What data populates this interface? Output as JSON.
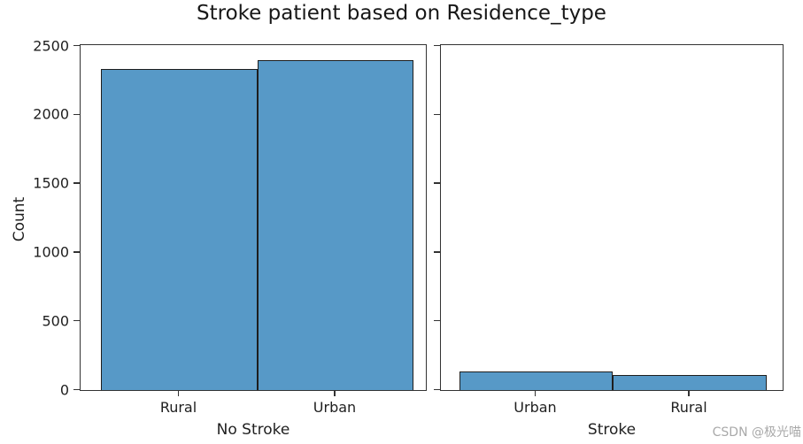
{
  "suptitle": "Stroke patient based on Residence_type",
  "watermark": "CSDN @极光喵",
  "colors": {
    "bar_fill": "#5799c7",
    "bar_edge": "#1e1e1e",
    "spine": "#333333",
    "text": "#1f1f1f",
    "watermark": "#a9a9a9"
  },
  "chart_data": [
    {
      "type": "bar",
      "subplot": "left",
      "categories": [
        "Rural",
        "Urban"
      ],
      "values": [
        2330,
        2395
      ],
      "xlabel": "No Stroke",
      "ylabel": "Count",
      "ylim": [
        0,
        2500
      ],
      "yticks": [
        0,
        500,
        1000,
        1500,
        2000,
        2500
      ],
      "grid": false,
      "legend": null
    },
    {
      "type": "bar",
      "subplot": "right",
      "categories": [
        "Urban",
        "Rural"
      ],
      "values": [
        135,
        110
      ],
      "xlabel": "Stroke",
      "ylabel": "",
      "ylim": [
        0,
        2500
      ],
      "yticks": [
        0,
        500,
        1000,
        1500,
        2000,
        2500
      ],
      "grid": false,
      "legend": null
    }
  ]
}
